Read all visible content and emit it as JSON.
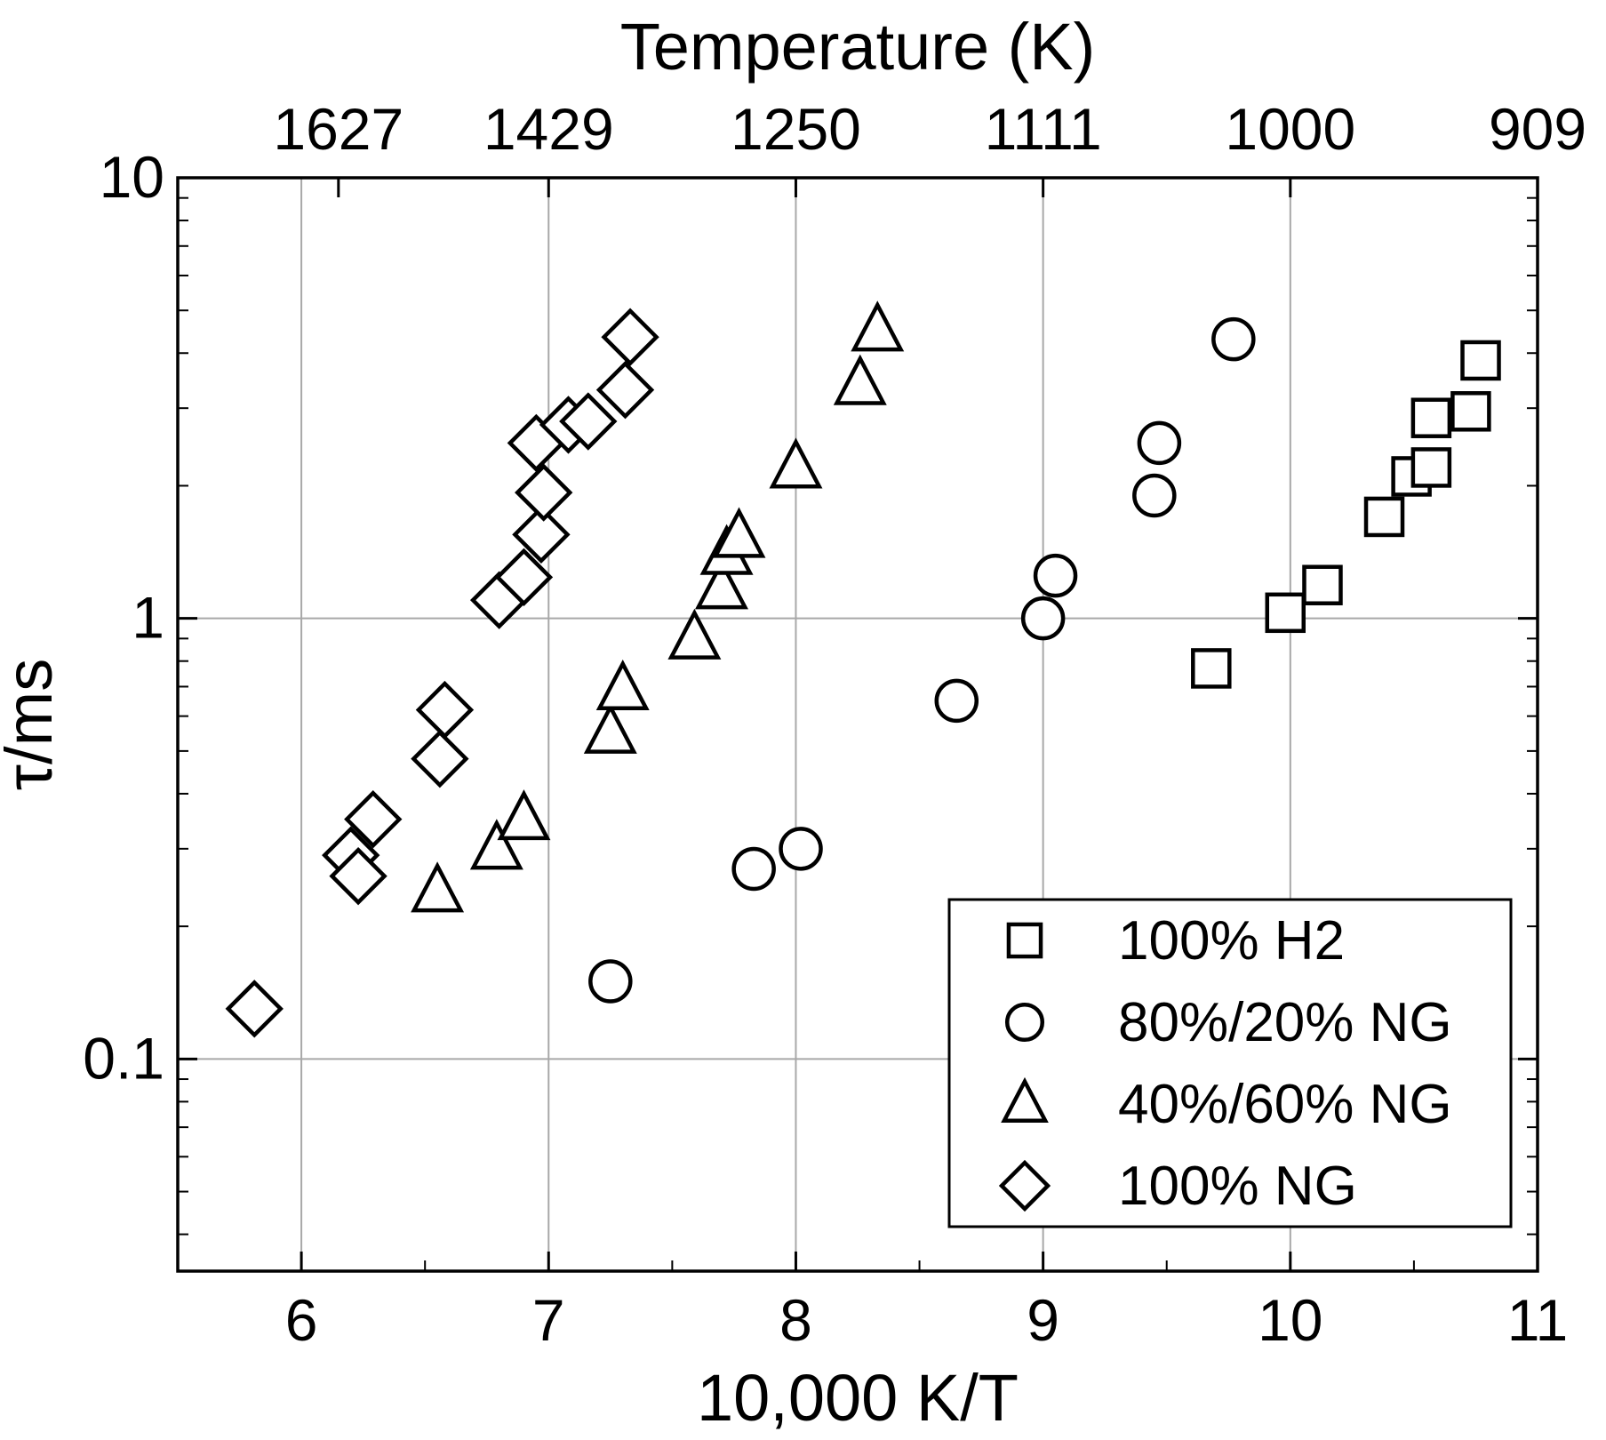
{
  "figure": {
    "top_axis_title": "Temperature (K)",
    "x_axis_title": "10,000 K/T",
    "y_axis_title": "τ/ms"
  },
  "chart_data": {
    "type": "scatter",
    "title": "",
    "xlabel": "10,000 K/T",
    "ylabel": "τ/ms",
    "x2label": "Temperature (K)",
    "xlim": [
      5.5,
      11
    ],
    "ylim": [
      0.033,
      10
    ],
    "yscale": "log",
    "grid": true,
    "grid_color": "#a8a8a8",
    "marker_color": "#000000",
    "marker_fill": "#ffffff",
    "legend_position": "bottom-right-inside",
    "x_ticks": [
      {
        "label": "6",
        "value": 6
      },
      {
        "label": "7",
        "value": 7
      },
      {
        "label": "8",
        "value": 8
      },
      {
        "label": "9",
        "value": 9
      },
      {
        "label": "10",
        "value": 10
      },
      {
        "label": "11",
        "value": 11
      }
    ],
    "y_ticks": [
      {
        "label": "0.1",
        "value": 0.1
      },
      {
        "label": "1",
        "value": 1
      },
      {
        "label": "10",
        "value": 10
      }
    ],
    "top_ticks": [
      {
        "label": "1627",
        "value": 6.15
      },
      {
        "label": "1429",
        "value": 7.0
      },
      {
        "label": "1250",
        "value": 8.0
      },
      {
        "label": "1111",
        "value": 9.0
      },
      {
        "label": "1000",
        "value": 10.0
      },
      {
        "label": "909",
        "value": 11.0
      }
    ],
    "series": [
      {
        "name": "100% H2",
        "marker": "square",
        "points": [
          [
            9.68,
            0.77
          ],
          [
            9.98,
            1.03
          ],
          [
            10.13,
            1.19
          ],
          [
            10.38,
            1.7
          ],
          [
            10.49,
            2.1
          ],
          [
            10.57,
            2.2
          ],
          [
            10.57,
            2.85
          ],
          [
            10.73,
            2.95
          ],
          [
            10.77,
            3.85
          ]
        ]
      },
      {
        "name": "80%/20% NG",
        "marker": "circle",
        "points": [
          [
            7.25,
            0.15
          ],
          [
            7.83,
            0.27
          ],
          [
            8.02,
            0.3
          ],
          [
            8.65,
            0.65
          ],
          [
            9.0,
            1.0
          ],
          [
            9.05,
            1.25
          ],
          [
            9.45,
            1.9
          ],
          [
            9.47,
            2.5
          ],
          [
            9.77,
            4.3
          ]
        ]
      },
      {
        "name": "40%/60% NG",
        "marker": "triangle",
        "points": [
          [
            6.55,
            0.24
          ],
          [
            6.79,
            0.3
          ],
          [
            6.9,
            0.35
          ],
          [
            7.25,
            0.55
          ],
          [
            7.3,
            0.69
          ],
          [
            7.59,
            0.9
          ],
          [
            7.7,
            1.17
          ],
          [
            7.72,
            1.4
          ],
          [
            7.77,
            1.53
          ],
          [
            8.0,
            2.2
          ],
          [
            8.26,
            3.4
          ],
          [
            8.33,
            4.5
          ]
        ]
      },
      {
        "name": "100% NG",
        "marker": "diamond",
        "points": [
          [
            5.81,
            0.13
          ],
          [
            6.2,
            0.29
          ],
          [
            6.23,
            0.26
          ],
          [
            6.29,
            0.35
          ],
          [
            6.56,
            0.48
          ],
          [
            6.58,
            0.62
          ],
          [
            6.8,
            1.1
          ],
          [
            6.9,
            1.24
          ],
          [
            6.97,
            1.55
          ],
          [
            6.98,
            1.93
          ],
          [
            6.95,
            2.5
          ],
          [
            7.08,
            2.75
          ],
          [
            7.16,
            2.8
          ],
          [
            7.31,
            3.3
          ],
          [
            7.33,
            4.35
          ]
        ]
      }
    ]
  }
}
